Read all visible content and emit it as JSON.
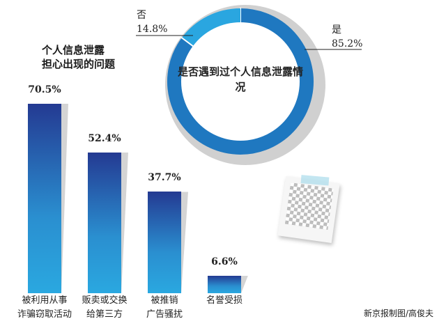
{
  "chart_data": [
    {
      "type": "pie",
      "title": "是否遇到过个人信息泄露情况",
      "categories": [
        "是",
        "否"
      ],
      "values": [
        85.2,
        14.8
      ],
      "value_labels": [
        "85.2%",
        "14.8%"
      ],
      "colors": [
        "#1f78c0",
        "#2aa6e0"
      ]
    },
    {
      "type": "bar",
      "title_lines": [
        "个人信息泄露",
        "担心出现的问题"
      ],
      "categories": [
        [
          "被利用从事",
          "诈骗窃取活动"
        ],
        [
          "贩卖或交换",
          "给第三方"
        ],
        [
          "被推销",
          "广告骚扰"
        ],
        [
          "名誉受损"
        ]
      ],
      "values": [
        70.5,
        52.4,
        37.7,
        6.6
      ],
      "value_labels": [
        "70.5%",
        "52.4%",
        "37.7%",
        "6.6%"
      ],
      "colors": {
        "top": "#243a92",
        "bottom": "#2aa8e0"
      }
    }
  ],
  "credit": "新京报制图/高俊夫"
}
